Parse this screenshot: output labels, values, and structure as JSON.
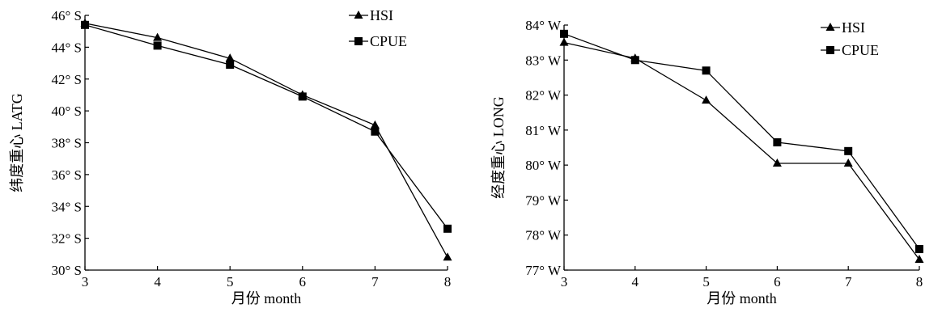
{
  "chart_data": [
    {
      "type": "line",
      "x": [
        3,
        4,
        5,
        6,
        7,
        8
      ],
      "series": [
        {
          "name": "HSI",
          "marker": "triangle",
          "values": [
            45.5,
            44.6,
            43.3,
            41.0,
            39.1,
            30.8
          ]
        },
        {
          "name": "CPUE",
          "marker": "square",
          "values": [
            45.4,
            44.1,
            42.9,
            40.9,
            38.7,
            32.6
          ]
        }
      ],
      "xlabel": "月份 month",
      "ylabel": "纬度重心 LATG",
      "xlim": [
        3,
        8
      ],
      "ylim": [
        30,
        46
      ],
      "xticks": [
        "3",
        "4",
        "5",
        "6",
        "7",
        "8"
      ],
      "yticks": [
        {
          "v": 30,
          "label": "30° S"
        },
        {
          "v": 32,
          "label": "32° S"
        },
        {
          "v": 34,
          "label": "34° S"
        },
        {
          "v": 36,
          "label": "36° S"
        },
        {
          "v": 38,
          "label": "38° S"
        },
        {
          "v": 40,
          "label": "40° S"
        },
        {
          "v": 42,
          "label": "42° S"
        },
        {
          "v": 44,
          "label": "44° S"
        },
        {
          "v": 46,
          "label": "46° S"
        }
      ],
      "grid": false,
      "legend": "top-right"
    },
    {
      "type": "line",
      "x": [
        3,
        4,
        5,
        6,
        7,
        8
      ],
      "series": [
        {
          "name": "HSI",
          "marker": "triangle",
          "values": [
            83.5,
            83.05,
            81.85,
            80.05,
            80.05,
            77.3
          ]
        },
        {
          "name": "CPUE",
          "marker": "square",
          "values": [
            83.75,
            83.0,
            82.7,
            80.65,
            80.4,
            77.6
          ]
        }
      ],
      "xlabel": "月份 month",
      "ylabel": "经度重心 LONG",
      "xlim": [
        3,
        8
      ],
      "ylim": [
        77,
        84
      ],
      "xticks": [
        "3",
        "4",
        "5",
        "6",
        "7",
        "8"
      ],
      "yticks": [
        {
          "v": 77,
          "label": "77° W"
        },
        {
          "v": 78,
          "label": "78° W"
        },
        {
          "v": 79,
          "label": "79° W"
        },
        {
          "v": 80,
          "label": "80° W"
        },
        {
          "v": 81,
          "label": "81° W"
        },
        {
          "v": 82,
          "label": "82° W"
        },
        {
          "v": 83,
          "label": "83° W"
        },
        {
          "v": 84,
          "label": "84° W"
        }
      ],
      "grid": false,
      "legend": "top-right"
    }
  ]
}
